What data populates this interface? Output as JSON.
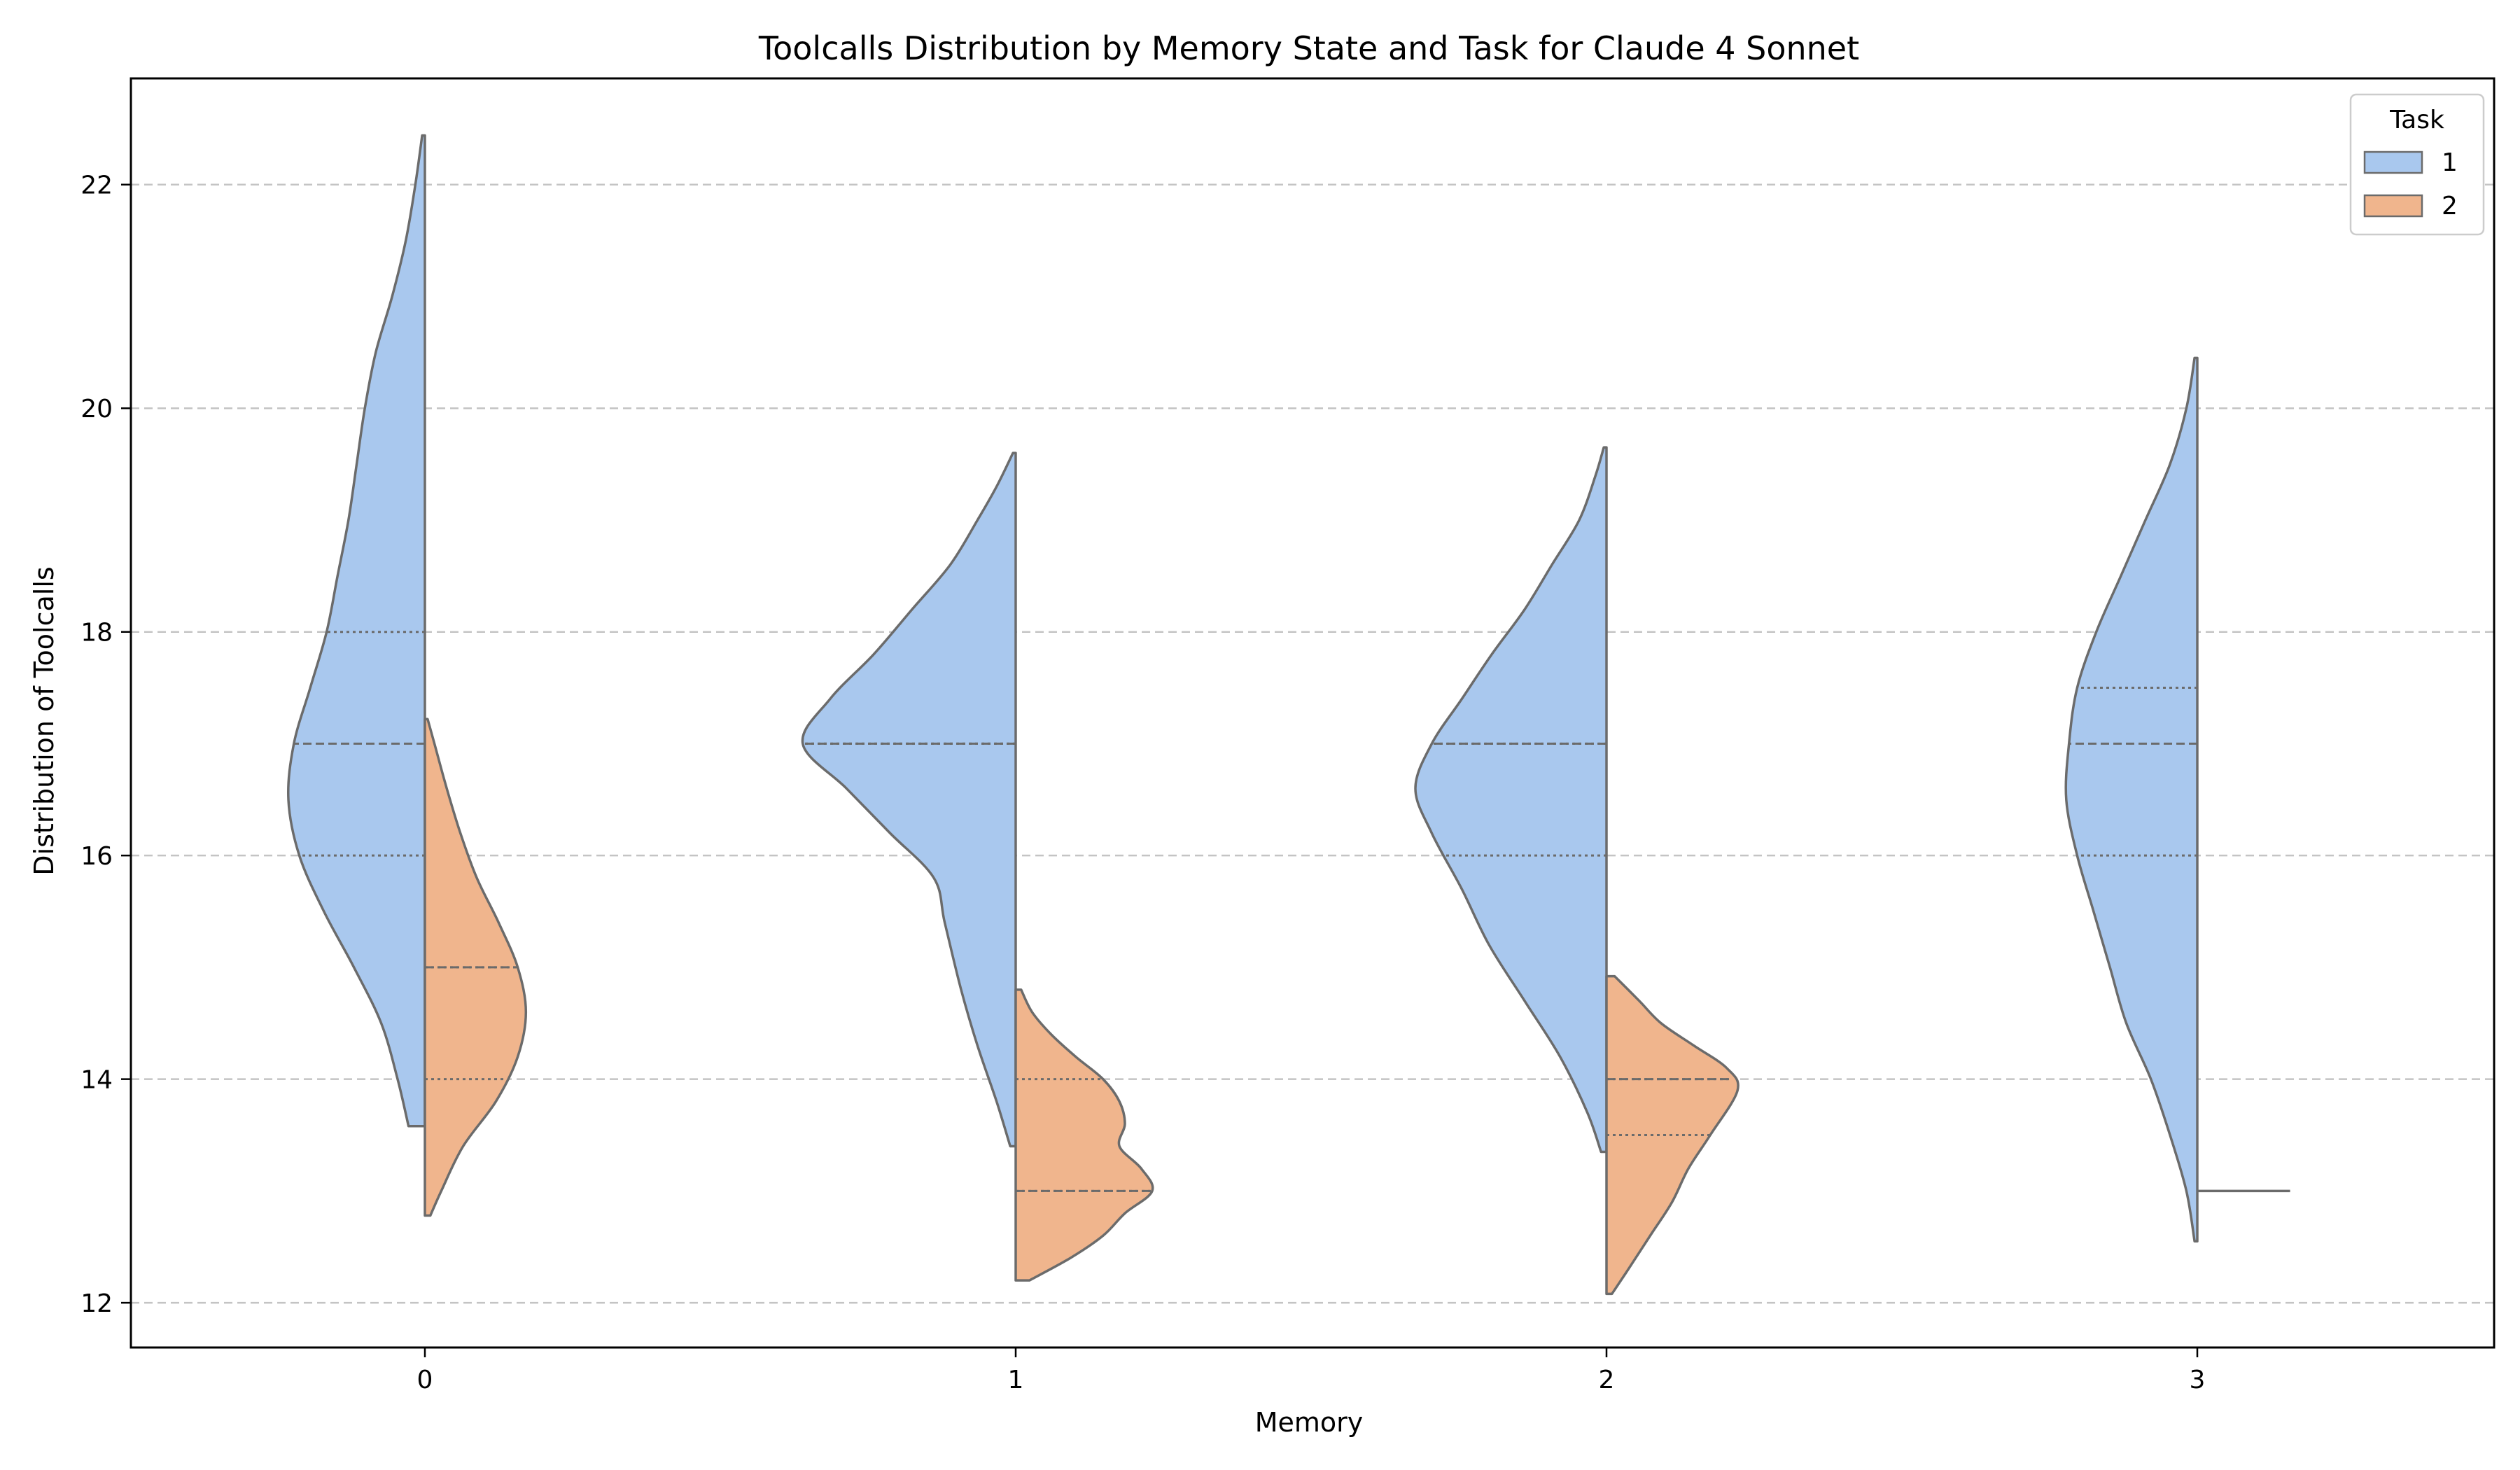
{
  "chart_data": {
    "type": "violin",
    "split": true,
    "title": "Toolcalls Distribution by Memory State and Task for Claude 4 Sonnet",
    "xlabel": "Memory",
    "ylabel": "Distribution of Toolcalls",
    "categories": [
      "0",
      "1",
      "2",
      "3"
    ],
    "y_ticks": [
      "12",
      "14",
      "16",
      "18",
      "20",
      "22"
    ],
    "ylim": [
      11.6,
      22.95
    ],
    "grid": "horizontal dashed",
    "legend": {
      "title": "Task",
      "placement": "top-right",
      "entries": [
        {
          "label": "1",
          "color": "#a9c8ee"
        },
        {
          "label": "2",
          "color": "#f0b58d"
        }
      ]
    },
    "outline_color": "#6b6b6b",
    "series": [
      {
        "name": "1",
        "side": "left",
        "color": "#a9c8ee",
        "violins": [
          {
            "category": "0",
            "y_min": 13.58,
            "y_max": 22.44,
            "quartiles": {
              "q1": 16,
              "median": 17,
              "q3": 18
            },
            "profile": [
              [
                13.58,
                0.06
              ],
              [
                14.0,
                0.1
              ],
              [
                14.5,
                0.16
              ],
              [
                15.0,
                0.26
              ],
              [
                15.5,
                0.37
              ],
              [
                16.0,
                0.46
              ],
              [
                16.5,
                0.5
              ],
              [
                17.0,
                0.48
              ],
              [
                17.5,
                0.42
              ],
              [
                18.0,
                0.36
              ],
              [
                18.5,
                0.32
              ],
              [
                19.0,
                0.28
              ],
              [
                19.5,
                0.25
              ],
              [
                20.0,
                0.22
              ],
              [
                20.5,
                0.18
              ],
              [
                21.0,
                0.12
              ],
              [
                21.5,
                0.07
              ],
              [
                22.0,
                0.035
              ],
              [
                22.44,
                0.01
              ]
            ]
          },
          {
            "category": "1",
            "y_min": 13.4,
            "y_max": 19.6,
            "quartiles": {
              "q1": 17,
              "median": 17,
              "q3": 17
            },
            "profile": [
              [
                13.4,
                0.02
              ],
              [
                13.8,
                0.07
              ],
              [
                14.3,
                0.14
              ],
              [
                14.8,
                0.2
              ],
              [
                15.4,
                0.26
              ],
              [
                15.8,
                0.3
              ],
              [
                16.2,
                0.46
              ],
              [
                16.6,
                0.62
              ],
              [
                17.0,
                0.78
              ],
              [
                17.4,
                0.68
              ],
              [
                17.8,
                0.52
              ],
              [
                18.2,
                0.38
              ],
              [
                18.6,
                0.24
              ],
              [
                19.0,
                0.14
              ],
              [
                19.3,
                0.07
              ],
              [
                19.6,
                0.01
              ]
            ]
          },
          {
            "category": "2",
            "y_min": 13.35,
            "y_max": 19.65,
            "quartiles": {
              "q1": 16,
              "median": 17,
              "q3": 17
            },
            "profile": [
              [
                13.35,
                0.02
              ],
              [
                13.7,
                0.07
              ],
              [
                14.2,
                0.17
              ],
              [
                14.7,
                0.3
              ],
              [
                15.2,
                0.43
              ],
              [
                15.7,
                0.53
              ],
              [
                16.2,
                0.64
              ],
              [
                16.6,
                0.7
              ],
              [
                17.0,
                0.64
              ],
              [
                17.4,
                0.53
              ],
              [
                17.8,
                0.42
              ],
              [
                18.2,
                0.3
              ],
              [
                18.6,
                0.2
              ],
              [
                19.0,
                0.1
              ],
              [
                19.4,
                0.04
              ],
              [
                19.65,
                0.01
              ]
            ]
          },
          {
            "category": "3",
            "y_min": 12.55,
            "y_max": 20.45,
            "quartiles": {
              "q1": 16,
              "median": 17,
              "q3": 17.5
            },
            "profile": [
              [
                12.55,
                0.01
              ],
              [
                13.0,
                0.04
              ],
              [
                13.5,
                0.1
              ],
              [
                14.0,
                0.17
              ],
              [
                14.5,
                0.26
              ],
              [
                15.0,
                0.32
              ],
              [
                15.5,
                0.38
              ],
              [
                16.0,
                0.44
              ],
              [
                16.5,
                0.48
              ],
              [
                17.0,
                0.47
              ],
              [
                17.5,
                0.44
              ],
              [
                18.0,
                0.37
              ],
              [
                18.5,
                0.28
              ],
              [
                19.0,
                0.19
              ],
              [
                19.5,
                0.1
              ],
              [
                20.0,
                0.04
              ],
              [
                20.45,
                0.01
              ]
            ]
          }
        ]
      },
      {
        "name": "2",
        "side": "right",
        "color": "#f0b58d",
        "violins": [
          {
            "category": "0",
            "y_min": 12.78,
            "y_max": 17.22,
            "quartiles": {
              "q1": 14,
              "median": 15,
              "q3": 15
            },
            "profile": [
              [
                12.78,
                0.02
              ],
              [
                13.0,
                0.06
              ],
              [
                13.4,
                0.14
              ],
              [
                13.8,
                0.26
              ],
              [
                14.2,
                0.34
              ],
              [
                14.6,
                0.37
              ],
              [
                15.0,
                0.34
              ],
              [
                15.4,
                0.27
              ],
              [
                15.8,
                0.19
              ],
              [
                16.2,
                0.13
              ],
              [
                16.6,
                0.08
              ],
              [
                17.0,
                0.035
              ],
              [
                17.22,
                0.01
              ]
            ]
          },
          {
            "category": "1",
            "y_min": 12.2,
            "y_max": 14.8,
            "quartiles": {
              "q1": 13,
              "median": 13,
              "q3": 14
            },
            "profile": [
              [
                12.2,
                0.05
              ],
              [
                12.4,
                0.2
              ],
              [
                12.6,
                0.32
              ],
              [
                12.8,
                0.4
              ],
              [
                13.0,
                0.5
              ],
              [
                13.2,
                0.46
              ],
              [
                13.4,
                0.38
              ],
              [
                13.6,
                0.4
              ],
              [
                13.8,
                0.38
              ],
              [
                14.0,
                0.32
              ],
              [
                14.2,
                0.22
              ],
              [
                14.4,
                0.13
              ],
              [
                14.6,
                0.06
              ],
              [
                14.8,
                0.02
              ]
            ]
          },
          {
            "category": "2",
            "y_min": 12.08,
            "y_max": 14.92,
            "quartiles": {
              "q1": 13.5,
              "median": 14,
              "q3": 14
            },
            "profile": [
              [
                12.08,
                0.02
              ],
              [
                12.3,
                0.08
              ],
              [
                12.6,
                0.16
              ],
              [
                12.9,
                0.24
              ],
              [
                13.2,
                0.3
              ],
              [
                13.5,
                0.38
              ],
              [
                13.9,
                0.48
              ],
              [
                14.1,
                0.44
              ],
              [
                14.3,
                0.32
              ],
              [
                14.5,
                0.2
              ],
              [
                14.7,
                0.12
              ],
              [
                14.92,
                0.03
              ]
            ]
          },
          {
            "category": "3",
            "y_min": 13.0,
            "y_max": 13.0,
            "quartiles": {
              "q1": 13,
              "median": 13,
              "q3": 13
            },
            "profile": [
              [
                13.0,
                0.4
              ]
            ]
          }
        ]
      }
    ]
  }
}
